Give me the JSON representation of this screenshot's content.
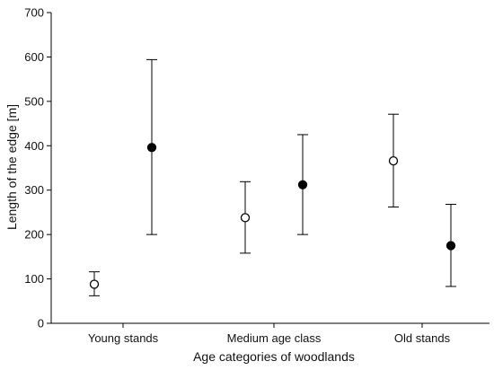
{
  "chart_data": {
    "type": "scatter",
    "title": "",
    "xlabel": "Age categories of woodlands",
    "ylabel": "Length of the edge [m]",
    "ylim": [
      0,
      700
    ],
    "yticks": [
      0,
      100,
      200,
      300,
      400,
      500,
      600,
      700
    ],
    "categories": [
      "Young stands",
      "Medium age class",
      "Old stands"
    ],
    "grid": false,
    "legend": "none",
    "series": [
      {
        "marker": "open-circle",
        "color": "#000000",
        "points": [
          {
            "category": "Young stands",
            "value": 88,
            "lower": 62,
            "upper": 116
          },
          {
            "category": "Medium age class",
            "value": 238,
            "lower": 158,
            "upper": 319
          },
          {
            "category": "Old stands",
            "value": 366,
            "lower": 262,
            "upper": 471
          }
        ]
      },
      {
        "marker": "filled-circle",
        "color": "#000000",
        "points": [
          {
            "category": "Young stands",
            "value": 396,
            "lower": 200,
            "upper": 594
          },
          {
            "category": "Medium age class",
            "value": 312,
            "lower": 200,
            "upper": 425
          },
          {
            "category": "Old stands",
            "value": 175,
            "lower": 83,
            "upper": 268
          }
        ]
      }
    ]
  }
}
